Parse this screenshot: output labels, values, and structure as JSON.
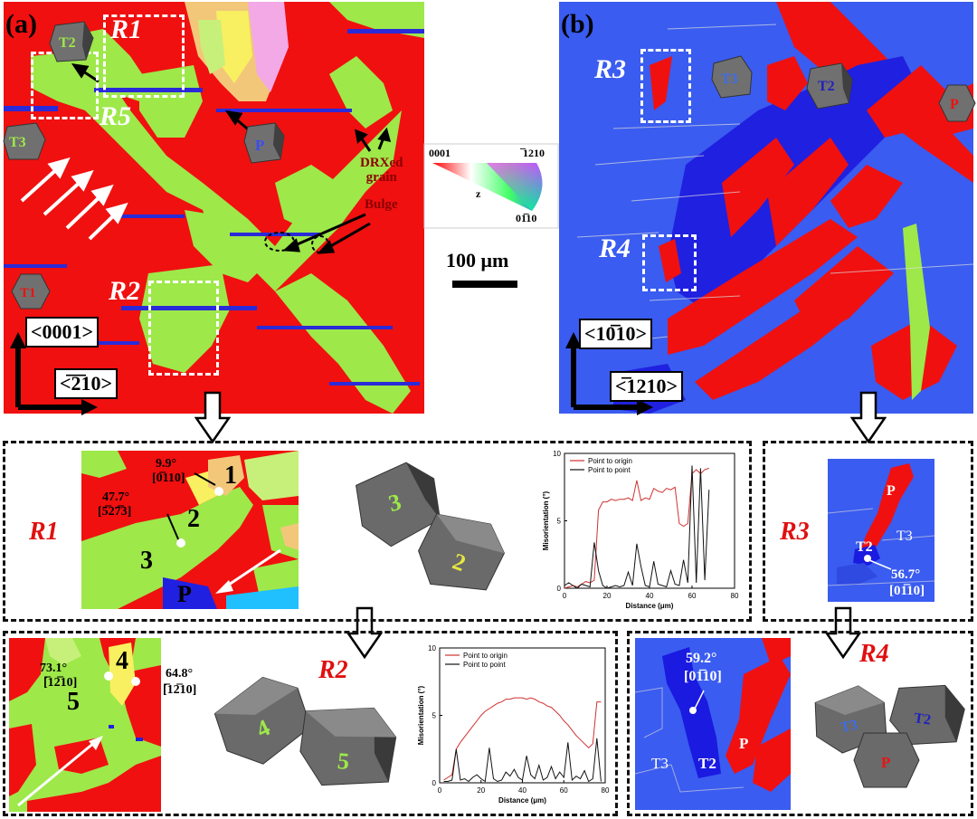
{
  "panel_a": {
    "letter": "(a)",
    "regions": {
      "r1": "R1",
      "r2": "R2",
      "r5": "R5"
    },
    "crystal_labels": {
      "t1": "T1",
      "t2": "T2",
      "t3": "T3",
      "p": "P"
    },
    "annotations": {
      "drx": "DRXed",
      "drx2": "grain",
      "bulge": "Bulge"
    },
    "axes": {
      "vertical": "<0001>",
      "horizontal": "<̅2̅10>"
    }
  },
  "panel_b": {
    "letter": "(b)",
    "regions": {
      "r3": "R3",
      "r4": "R4"
    },
    "crystal_labels": {
      "t2": "T2",
      "t3": "T3",
      "p": "P"
    },
    "axes": {
      "vertical": "<10̅10>",
      "horizontal": "<̅1210>"
    }
  },
  "legend": {
    "corner_0001": "0001",
    "corner_top_right": "̅1210",
    "corner_bottom_right": "01̅10",
    "center": "z",
    "scale": "100 μm"
  },
  "r1_box": {
    "title": "R1",
    "misor_1": "9.9°",
    "axis_1": "[0̅110]",
    "misor_2": "47.7°",
    "axis_2": "[5̅27̅3]",
    "grain_labels": [
      "1",
      "2",
      "3",
      "P"
    ],
    "crystal_labels": [
      "3",
      "2"
    ]
  },
  "r2_box": {
    "title": "R2",
    "misor_1": "73.1°",
    "axis_1": "[̅12̅10]",
    "misor_2": "64.8°",
    "axis_2": "[̅12̅10]",
    "grain_labels": [
      "4",
      "5"
    ],
    "crystal_labels": [
      "4",
      "5"
    ]
  },
  "r3_box": {
    "title": "R3",
    "labels": {
      "p": "P",
      "t3": "T3",
      "t2": "T2"
    },
    "misor": "56.7°",
    "axis": "[01̅10]"
  },
  "r4_box": {
    "title": "R4",
    "labels": {
      "t3": "T3",
      "t2": "T2",
      "p": "P"
    },
    "misor": "59.2°",
    "axis": "[01̅10]",
    "crystal_labels": [
      "T3",
      "T2",
      "P"
    ]
  },
  "colors": {
    "red": "#f01010",
    "green": "#9ee84a",
    "blue": "#3a5cf0",
    "dark_blue": "#1a1ae0",
    "point_to_origin": "#d03030",
    "point_to_point": "#111111"
  },
  "chart_data": [
    {
      "type": "line",
      "title": "",
      "xlabel": "Distance (μm)",
      "ylabel": "Misorientation (°)",
      "xlim": [
        0,
        80
      ],
      "ylim": [
        0,
        10
      ],
      "xticks": [
        0,
        20,
        40,
        60,
        80
      ],
      "yticks": [
        0,
        5,
        10
      ],
      "legend_position": "top-left",
      "series": [
        {
          "name": "Point to origin",
          "color": "#d03030",
          "x": [
            0,
            2,
            4,
            6,
            8,
            10,
            12,
            14,
            16,
            18,
            20,
            22,
            24,
            26,
            28,
            30,
            32,
            34,
            36,
            38,
            40,
            42,
            44,
            46,
            48,
            50,
            52,
            54,
            56,
            58,
            60,
            62,
            64,
            66,
            68
          ],
          "y": [
            0,
            0.1,
            0.2,
            0.1,
            0.3,
            0.5,
            0.4,
            0.6,
            5.8,
            6.4,
            6.4,
            6.6,
            6.5,
            6.6,
            6.6,
            6.7,
            6.5,
            8.0,
            6.5,
            6.7,
            6.6,
            7.4,
            7.2,
            7.1,
            7.4,
            7.3,
            7.5,
            4.8,
            4.6,
            4.8,
            8.5,
            8.8,
            8.5,
            8.8,
            8.9
          ]
        },
        {
          "name": "Point to point",
          "color": "#111111",
          "x": [
            0,
            2,
            4,
            6,
            8,
            10,
            12,
            14,
            16,
            18,
            20,
            22,
            24,
            26,
            28,
            30,
            32,
            34,
            36,
            38,
            40,
            42,
            44,
            46,
            48,
            50,
            52,
            54,
            56,
            58,
            60,
            62,
            64,
            66,
            68
          ],
          "y": [
            0.2,
            0.4,
            0.2,
            0,
            0.3,
            0.2,
            0.1,
            3.4,
            1.3,
            0.2,
            0,
            0.1,
            0.2,
            0.1,
            0.2,
            1.2,
            0.2,
            3.3,
            1.6,
            0.2,
            0.1,
            2.0,
            0.3,
            0.2,
            0.1,
            1.3,
            0.3,
            0.2,
            2.1,
            0.4,
            9.1,
            0.4,
            8.9,
            0.6,
            7.3
          ]
        }
      ]
    },
    {
      "type": "line",
      "title": "",
      "xlabel": "Distance (μm)",
      "ylabel": "Misorientation (°)",
      "xlim": [
        0,
        80
      ],
      "ylim": [
        0,
        10
      ],
      "xticks": [
        0,
        20,
        40,
        60,
        80
      ],
      "yticks": [
        0,
        5,
        10
      ],
      "legend_position": "top-left",
      "series": [
        {
          "name": "Point to origin",
          "color": "#d03030",
          "x": [
            2,
            4,
            6,
            8,
            10,
            12,
            14,
            16,
            18,
            20,
            22,
            24,
            26,
            28,
            30,
            32,
            34,
            36,
            38,
            40,
            42,
            44,
            46,
            48,
            50,
            52,
            54,
            56,
            58,
            60,
            62,
            64,
            66,
            68,
            70,
            72,
            74,
            76,
            78
          ],
          "y": [
            0.2,
            0.4,
            0.6,
            2.5,
            3.0,
            3.4,
            3.8,
            4.2,
            4.6,
            5.0,
            5.3,
            5.5,
            5.7,
            5.9,
            6.0,
            6.2,
            6.2,
            6.3,
            6.3,
            6.3,
            6.2,
            6.3,
            6.2,
            6.0,
            5.9,
            5.7,
            5.6,
            5.3,
            5.0,
            4.6,
            4.3,
            3.9,
            3.5,
            3.2,
            2.9,
            2.6,
            2.9,
            6.0,
            6.0
          ]
        },
        {
          "name": "Point to point",
          "color": "#111111",
          "x": [
            2,
            4,
            6,
            8,
            10,
            12,
            14,
            16,
            18,
            20,
            22,
            24,
            26,
            28,
            30,
            32,
            34,
            36,
            38,
            40,
            42,
            44,
            46,
            48,
            50,
            52,
            54,
            56,
            58,
            60,
            62,
            64,
            66,
            68,
            70,
            72,
            74,
            76,
            78
          ],
          "y": [
            0.1,
            0.1,
            0.2,
            2.5,
            0.2,
            0.3,
            0.1,
            0.4,
            0.6,
            0.3,
            0.1,
            2.6,
            0.3,
            0.1,
            0.2,
            0.8,
            0.5,
            1.0,
            0.4,
            0.2,
            2.0,
            0.6,
            0.3,
            1.3,
            0.2,
            0.4,
            1.2,
            0.3,
            0.8,
            0.4,
            3.0,
            0.2,
            0.5,
            0.3,
            0.9,
            0.1,
            0.3,
            3.3,
            0.1
          ]
        }
      ]
    }
  ]
}
